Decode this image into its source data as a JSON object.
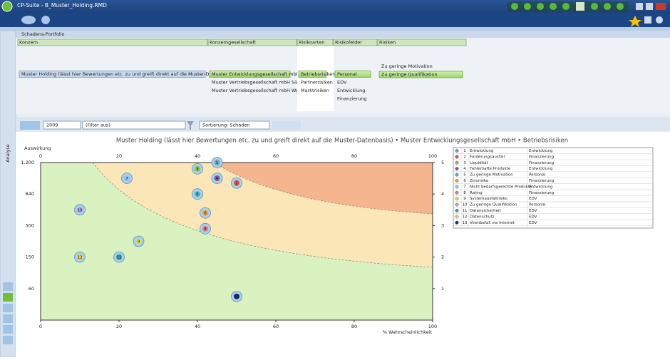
{
  "window": {
    "title": "CP-Suite - B_Muster_Holding.RMD"
  },
  "panel": {
    "title": "Schadens-Portfolio",
    "side_tab": "Analyse"
  },
  "hierarchy": {
    "columns": [
      {
        "header": "Konzern",
        "items": [
          "Muster Holding (lässt hier Bewertungen etc. zu und greift direkt auf die Muster-Datenbasis)"
        ],
        "selected": 0
      },
      {
        "header": "Konzerngesellschaft",
        "items": [
          "Muster Entwicklungsgesellschaft mbH",
          "Muster Vertriebsgesellschaft mbH Süd",
          "Muster Vertriebsgesellschaft mbH West"
        ],
        "selected": 0
      },
      {
        "header": "Risikoarten",
        "items": [
          "Betriebsrisiken",
          "Partnerrisiken",
          "Marktrisiken"
        ],
        "selected": 0
      },
      {
        "header": "Risikofelder",
        "items": [
          "Personal",
          "EDV",
          "Entwicklung",
          "Finanzierung"
        ],
        "selected": 0
      },
      {
        "header": "Risiken",
        "items": [
          "Zu geringe Motivation",
          "Zu geringe Qualifikation"
        ],
        "selected": 1
      }
    ]
  },
  "toolbar": {
    "year": "2009",
    "filter": "(Filter aus)",
    "sort": "Sortierung: Schaden"
  },
  "chart_data": {
    "type": "scatter",
    "title": "Muster Holding (lässt hier Bewertungen etc. zu und greift direkt auf die Muster-Datenbasis) • Muster Entwicklungsgesellschaft mbH • Betriebsrisiken",
    "y_label": "Auswirkung",
    "x_label": "% Wahrscheinlichkeit",
    "xlim": [
      0,
      100
    ],
    "xticks": [
      0,
      20,
      40,
      60,
      80,
      100
    ],
    "ylim": [
      0,
      5
    ],
    "yticks": [
      1,
      2,
      3,
      4,
      5
    ],
    "impact_labels": [
      "60",
      "150",
      "500",
      "840",
      "1.200"
    ],
    "series": [
      {
        "number": 1,
        "name": "Entwicklung",
        "field": "Entwicklung",
        "color": "#7f9fc0",
        "x": [
          45
        ],
        "values": [
          5
        ]
      },
      {
        "number": 2,
        "name": "Forderungsausfall",
        "field": "Finanzierung",
        "color": "#d9534f",
        "x": [
          50
        ],
        "values": [
          4.35
        ]
      },
      {
        "number": 3,
        "name": "Liquidität",
        "field": "Finanzierung",
        "color": "#8cc04a",
        "x": [
          40
        ],
        "values": [
          4.8
        ]
      },
      {
        "number": 4,
        "name": "Fehlerhafte Produkte",
        "field": "Entwicklung",
        "color": "#7a5aa8",
        "x": [
          45
        ],
        "values": [
          4.5
        ]
      },
      {
        "number": 5,
        "name": "Zu geringe Motivation",
        "field": "Personal",
        "color": "#4fb0c6",
        "x": [
          40
        ],
        "values": [
          4
        ]
      },
      {
        "number": 6,
        "name": "Zinsrisiko",
        "field": "Finanzierung",
        "color": "#f0a030",
        "x": [
          42
        ],
        "values": [
          3.4
        ]
      },
      {
        "number": 7,
        "name": "Nicht bedarfsgerechte Produkte",
        "field": "Entwicklung",
        "color": "#8fc3e8",
        "x": [
          22
        ],
        "values": [
          4.5
        ]
      },
      {
        "number": 8,
        "name": "Rating",
        "field": "Finanzierung",
        "color": "#e07a8a",
        "x": [
          42
        ],
        "values": [
          2.9
        ]
      },
      {
        "number": 9,
        "name": "Systemausfallrisiko",
        "field": "EDV",
        "color": "#d4e05a",
        "x": [
          25
        ],
        "values": [
          2.5
        ]
      },
      {
        "number": 10,
        "name": "Zu geringe Qualifikation",
        "field": "Personal",
        "color": "#b9a0d8",
        "x": [
          10
        ],
        "values": [
          3.5
        ]
      },
      {
        "number": 11,
        "name": "Datensicherheit",
        "field": "EDV",
        "color": "#3aa0a8",
        "x": [
          20
        ],
        "values": [
          2
        ]
      },
      {
        "number": 12,
        "name": "Datenschutz",
        "field": "EDV",
        "color": "#f5c842",
        "x": [
          10
        ],
        "values": [
          2
        ]
      },
      {
        "number": 13,
        "name": "Virenbefall via Internet",
        "field": "EDV",
        "color": "#1f2f6f",
        "x": [
          50
        ],
        "values": [
          0.75
        ]
      }
    ]
  }
}
